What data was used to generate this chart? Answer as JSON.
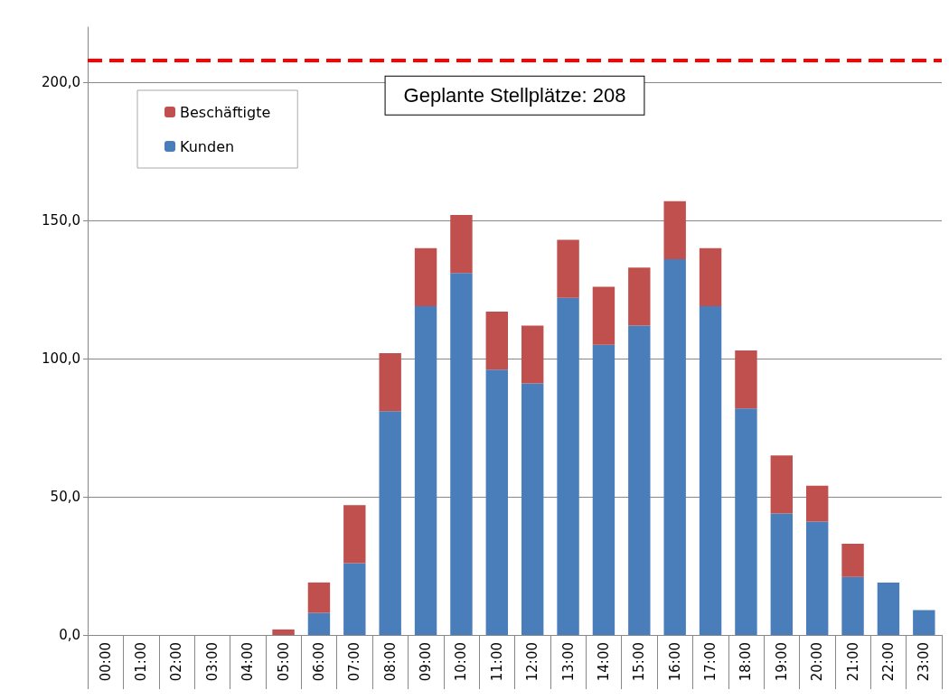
{
  "chart_data": {
    "type": "bar",
    "stacked": true,
    "categories": [
      "00:00",
      "01:00",
      "02:00",
      "03:00",
      "04:00",
      "05:00",
      "06:00",
      "07:00",
      "08:00",
      "09:00",
      "10:00",
      "11:00",
      "12:00",
      "13:00",
      "14:00",
      "15:00",
      "16:00",
      "17:00",
      "18:00",
      "19:00",
      "20:00",
      "21:00",
      "22:00",
      "23:00"
    ],
    "series": [
      {
        "name": "Kunden",
        "color": "#4a7ebb",
        "values": [
          0,
          0,
          0,
          0,
          0,
          0,
          8,
          26,
          81,
          119,
          131,
          96,
          91,
          122,
          105,
          112,
          136,
          119,
          82,
          44,
          41,
          21,
          19,
          9
        ]
      },
      {
        "name": "Beschäftigte",
        "color": "#c0504d",
        "values": [
          0,
          0,
          0,
          0,
          0,
          2,
          11,
          21,
          21,
          21,
          21,
          21,
          21,
          21,
          21,
          21,
          21,
          21,
          21,
          21,
          13,
          12,
          0,
          0
        ]
      }
    ],
    "ylim": [
      0,
      220
    ],
    "yticks": [
      {
        "value": 0,
        "label": "0,0"
      },
      {
        "value": 50,
        "label": "50,0"
      },
      {
        "value": 100,
        "label": "100,0"
      },
      {
        "value": 150,
        "label": "150,0"
      },
      {
        "value": 200,
        "label": "200,0"
      }
    ],
    "grid": "y",
    "legend": "top left",
    "ref_lines": [
      {
        "axis": "y",
        "value": 208,
        "label": "Geplante Stellplätze: 208",
        "color": "#ff0000",
        "line_style": "dashed"
      }
    ]
  }
}
